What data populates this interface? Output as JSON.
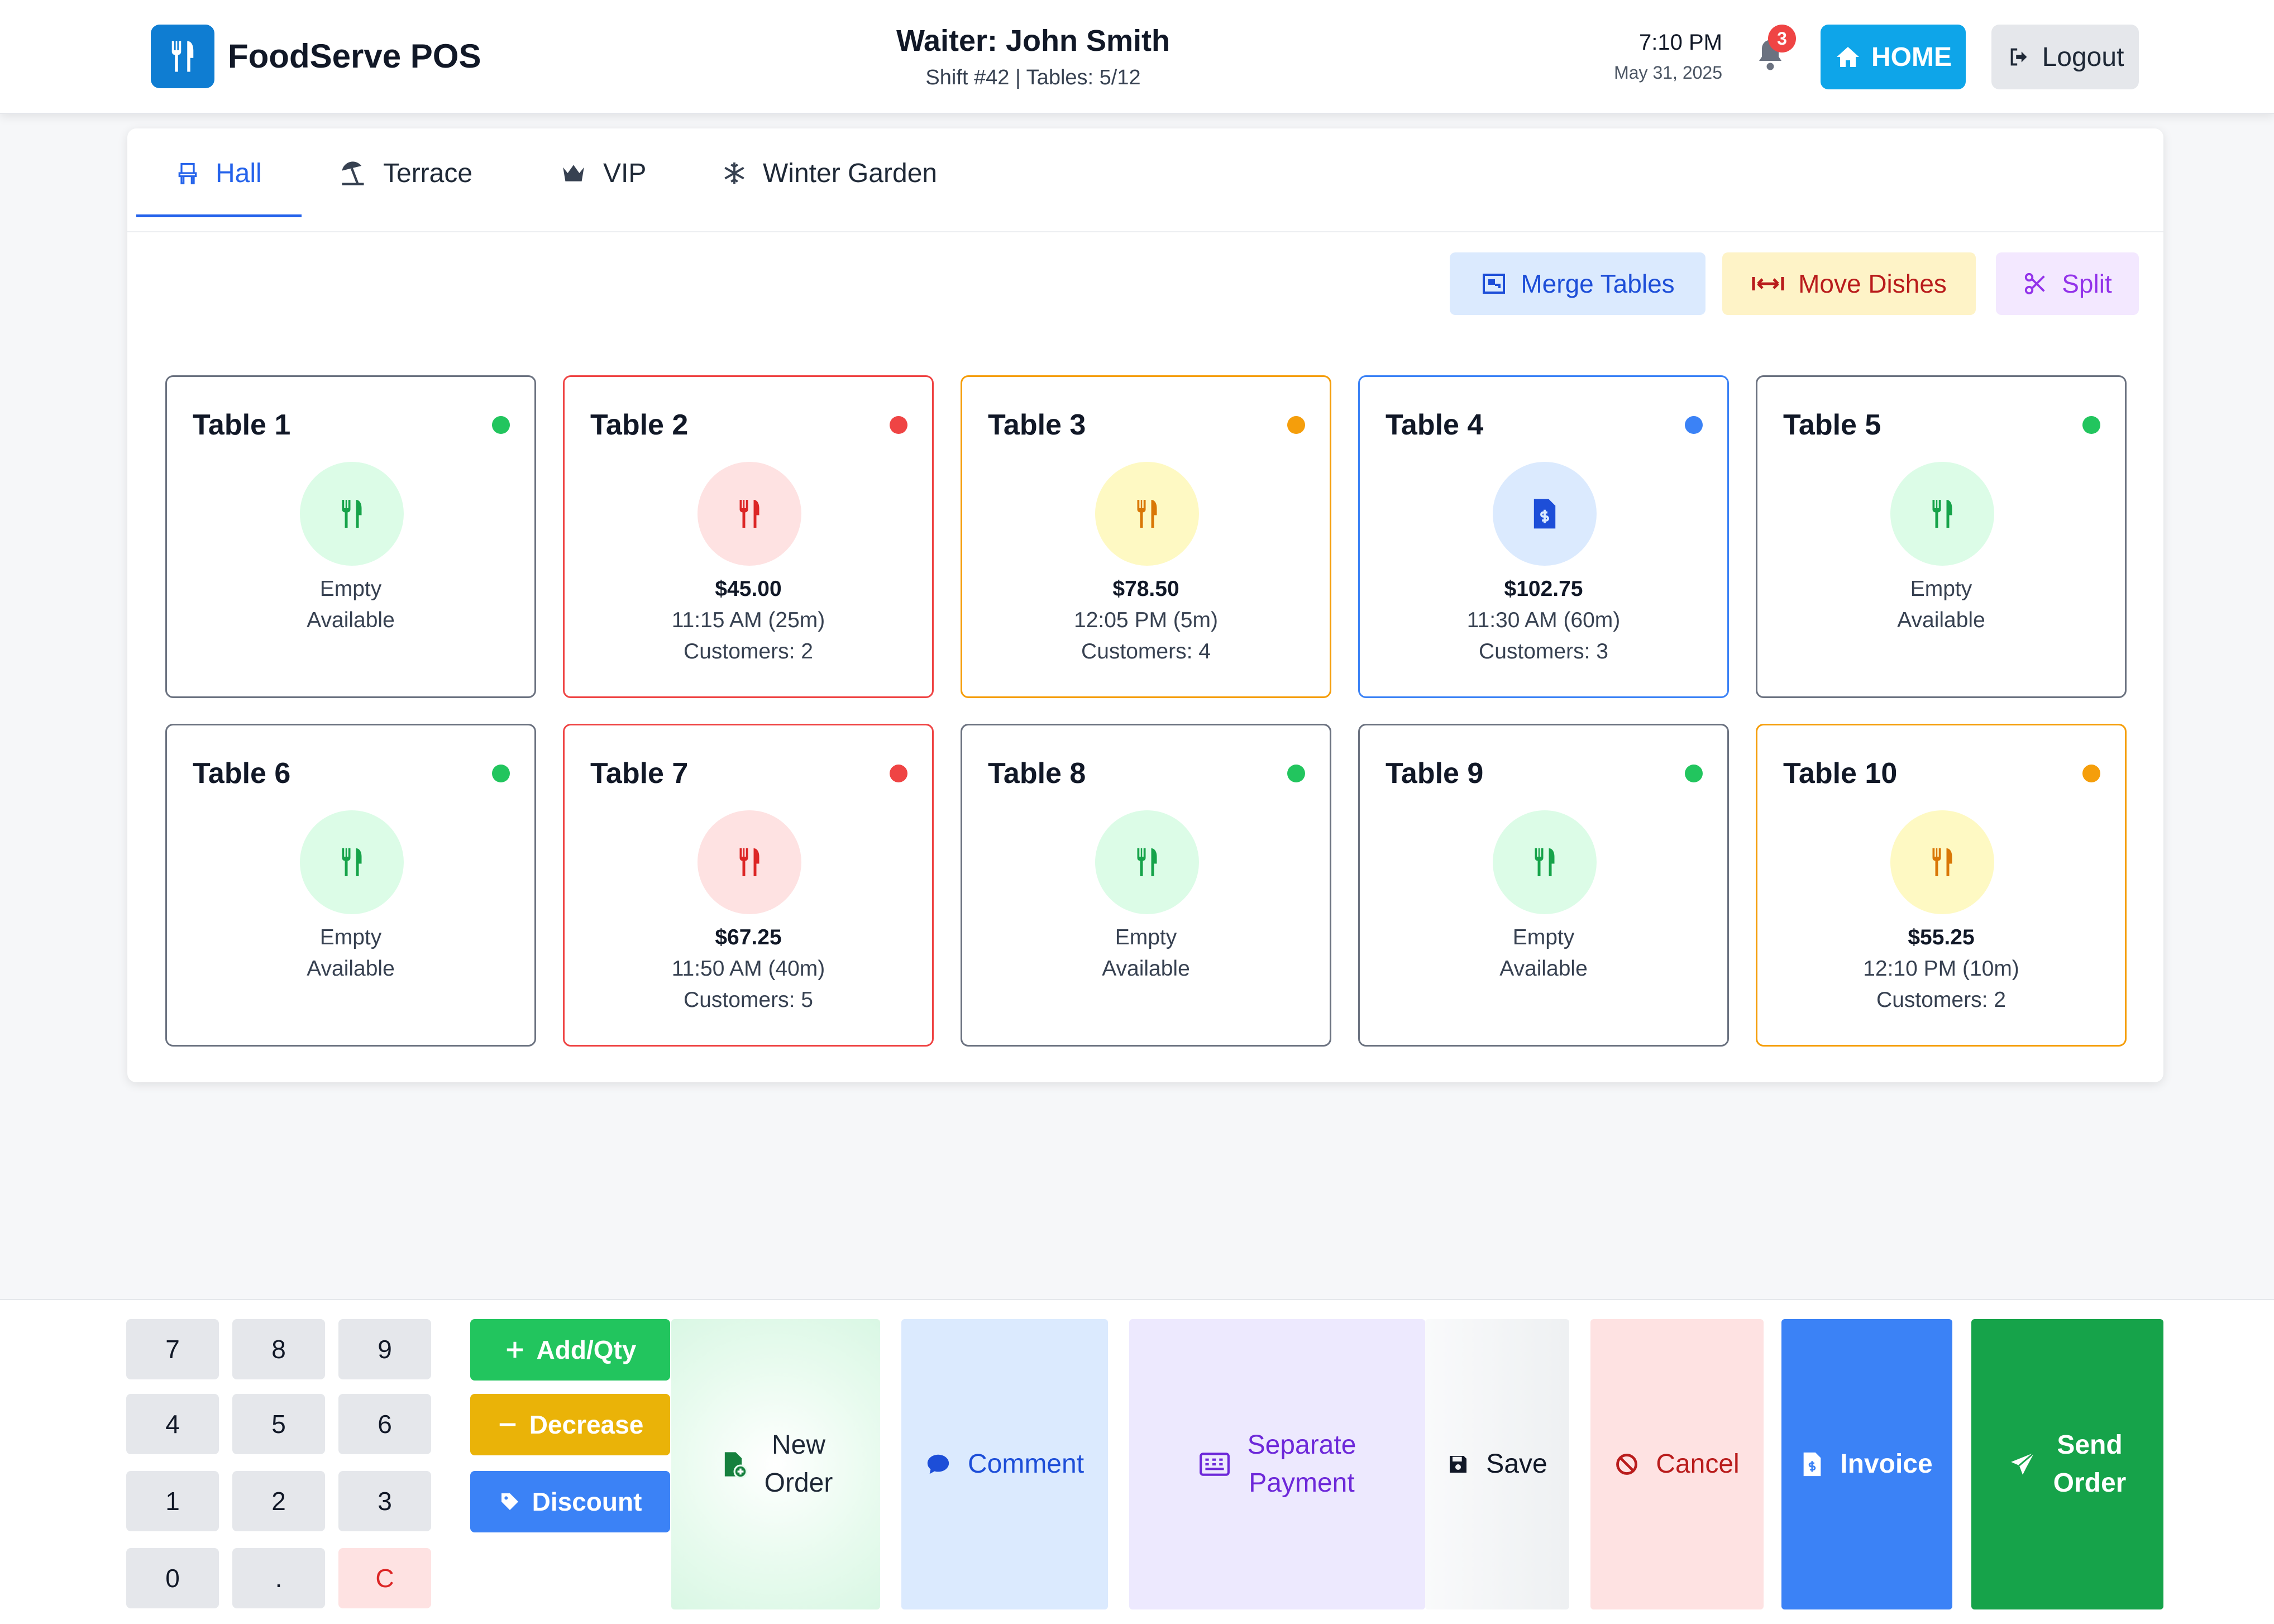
{
  "header": {
    "app_title": "FoodServe POS",
    "waiter": "Waiter: John Smith",
    "shift_info": "Shift #42 | Tables: 5/12",
    "time": "7:10 PM",
    "date": "May 31, 2025",
    "notification_count": "3",
    "home_label": "HOME",
    "logout_label": "Logout"
  },
  "tabs": [
    {
      "label": "Hall",
      "icon": "chair-icon",
      "active": true
    },
    {
      "label": "Terrace",
      "icon": "umbrella-beach-icon",
      "active": false
    },
    {
      "label": "VIP",
      "icon": "crown-icon",
      "active": false
    },
    {
      "label": "Winter Garden",
      "icon": "snowflake-icon",
      "active": false
    }
  ],
  "actions": {
    "merge": "Merge Tables",
    "move": "Move Dishes",
    "split": "Split"
  },
  "tables": [
    {
      "name": "Table 1",
      "status": "available",
      "line1": "Empty",
      "line2": "Available",
      "line3": ""
    },
    {
      "name": "Table 2",
      "status": "occupied",
      "line1": "$45.00",
      "line2": "11:15 AM (25m)",
      "line3": "Customers: 2"
    },
    {
      "name": "Table 3",
      "status": "ordering",
      "line1": "$78.50",
      "line2": "12:05 PM (5m)",
      "line3": "Customers: 4"
    },
    {
      "name": "Table 4",
      "status": "billing",
      "line1": "$102.75",
      "line2": "11:30 AM (60m)",
      "line3": "Customers: 3"
    },
    {
      "name": "Table 5",
      "status": "available",
      "line1": "Empty",
      "line2": "Available",
      "line3": ""
    },
    {
      "name": "Table 6",
      "status": "available",
      "line1": "Empty",
      "line2": "Available",
      "line3": ""
    },
    {
      "name": "Table 7",
      "status": "occupied",
      "line1": "$67.25",
      "line2": "11:50 AM (40m)",
      "line3": "Customers: 5"
    },
    {
      "name": "Table 8",
      "status": "available",
      "line1": "Empty",
      "line2": "Available",
      "line3": ""
    },
    {
      "name": "Table 9",
      "status": "available",
      "line1": "Empty",
      "line2": "Available",
      "line3": ""
    },
    {
      "name": "Table 10",
      "status": "ordering",
      "line1": "$55.25",
      "line2": "12:10 PM (10m)",
      "line3": "Customers: 2"
    }
  ],
  "status_colors": {
    "available": "#22c55e",
    "occupied": "#ef4444",
    "ordering": "#f59e0b",
    "billing": "#3b82f6"
  },
  "keypad": [
    "7",
    "8",
    "9",
    "4",
    "5",
    "6",
    "1",
    "2",
    "3",
    "0",
    ".",
    "C"
  ],
  "qty": {
    "add": "Add/Qty",
    "decrease": "Decrease",
    "discount": "Discount"
  },
  "toolbar": {
    "new_order_line1": "New",
    "new_order_line2": "Order",
    "comment": "Comment",
    "separate_line1": "Separate",
    "separate_line2": "Payment",
    "save": "Save",
    "cancel": "Cancel",
    "invoice": "Invoice",
    "send_line1": "Send",
    "send_line2": "Order"
  }
}
